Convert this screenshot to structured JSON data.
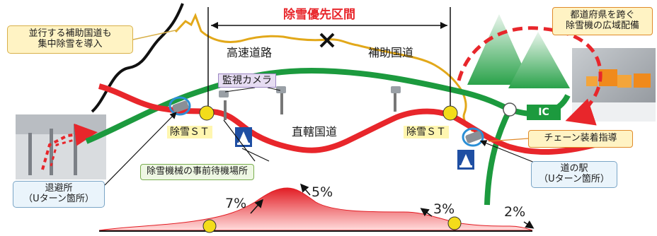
{
  "diagram": {
    "priority_section": "除雪優先区間",
    "highway": "高速道路",
    "aux_road": "補助国道",
    "direct_road": "直轄国道",
    "camera": "監視カメラ",
    "st_left": "除雪ＳＴ",
    "st_right": "除雪ＳＴ",
    "staging_area": "除雪機械の事前待機場所",
    "parallel_note_line1": "並行する補助国道も",
    "parallel_note_line2": "集中除雪を導入",
    "wide_area_line1": "都道府県を跨ぐ",
    "wide_area_line2": "除雪機の広域配備",
    "ic": "IC",
    "chain_guidance": "チェーン装着指導",
    "evac_line1": "退避所",
    "evac_line2": "（Uターン箇所）",
    "michinoeki_line1": "道の駅",
    "michinoeki_line2": "（Uターン箇所）",
    "grade_7": "7%",
    "grade_5": "5%",
    "grade_3": "3%",
    "grade_2": "2%"
  },
  "colors": {
    "highway_green": "#1c9a3e",
    "direct_road_red": "#e8262b",
    "aux_road_yellow": "#e2a81a",
    "section_red": "#e8262b",
    "st_marker_yellow": "#f3dc1a",
    "michinoeki_blue": "#1f4fa3"
  },
  "icons": {
    "closure": "x-mark-icon",
    "camera": "camera-pole-icon",
    "rest_stop": "michinoeki-icon",
    "uturn": "uturn-arrow-icon",
    "snow_vehicle": "snowplow-icon"
  }
}
